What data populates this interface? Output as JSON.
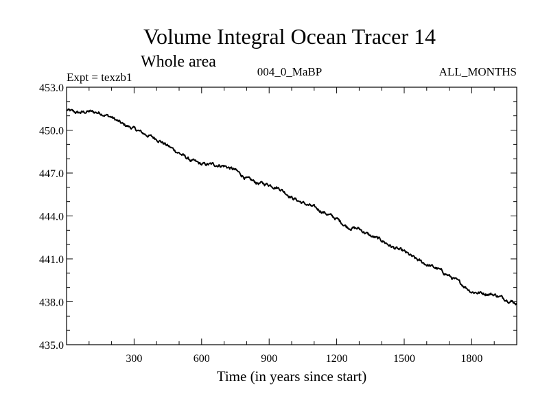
{
  "chart_data": {
    "type": "line",
    "title": "Volume Integral Ocean Tracer 14",
    "subtitle": "Whole area",
    "annotation_left": "Expt = texzb1",
    "annotation_center": "004_0_MaBP",
    "annotation_right": "ALL_MONTHS",
    "xlabel": "Time (in years since start)",
    "ylabel": "",
    "xlim": [
      0,
      2000
    ],
    "ylim": [
      435.0,
      453.0
    ],
    "xticks": [
      300,
      600,
      900,
      1200,
      1500,
      1800
    ],
    "xtick_labels": [
      "300",
      "600",
      "900",
      "1200",
      "1500",
      "1800"
    ],
    "yticks": [
      435.0,
      438.0,
      441.0,
      444.0,
      447.0,
      450.0,
      453.0
    ],
    "ytick_labels": [
      "435.0",
      "438.0",
      "441.0",
      "444.0",
      "447.0",
      "450.0",
      "453.0"
    ],
    "grid": false,
    "series": [
      {
        "name": "Volume Integral Ocean Tracer 14",
        "x": [
          0,
          50,
          100,
          150,
          200,
          250,
          300,
          350,
          400,
          450,
          500,
          550,
          600,
          650,
          700,
          750,
          800,
          850,
          900,
          950,
          1000,
          1050,
          1100,
          1150,
          1200,
          1250,
          1300,
          1350,
          1400,
          1450,
          1500,
          1550,
          1600,
          1650,
          1700,
          1750,
          1800,
          1850,
          1900,
          1950,
          2000
        ],
        "values": [
          451.4,
          451.2,
          451.3,
          451.2,
          450.9,
          450.4,
          450.1,
          449.7,
          449.4,
          448.9,
          448.4,
          447.9,
          447.6,
          447.6,
          447.5,
          447.2,
          446.6,
          446.3,
          446.2,
          445.9,
          445.3,
          444.9,
          444.6,
          444.2,
          443.8,
          443.2,
          443.1,
          442.6,
          442.3,
          441.8,
          441.5,
          441.0,
          440.6,
          440.3,
          439.8,
          439.3,
          438.7,
          438.6,
          438.5,
          438.2,
          437.9
        ]
      }
    ]
  }
}
